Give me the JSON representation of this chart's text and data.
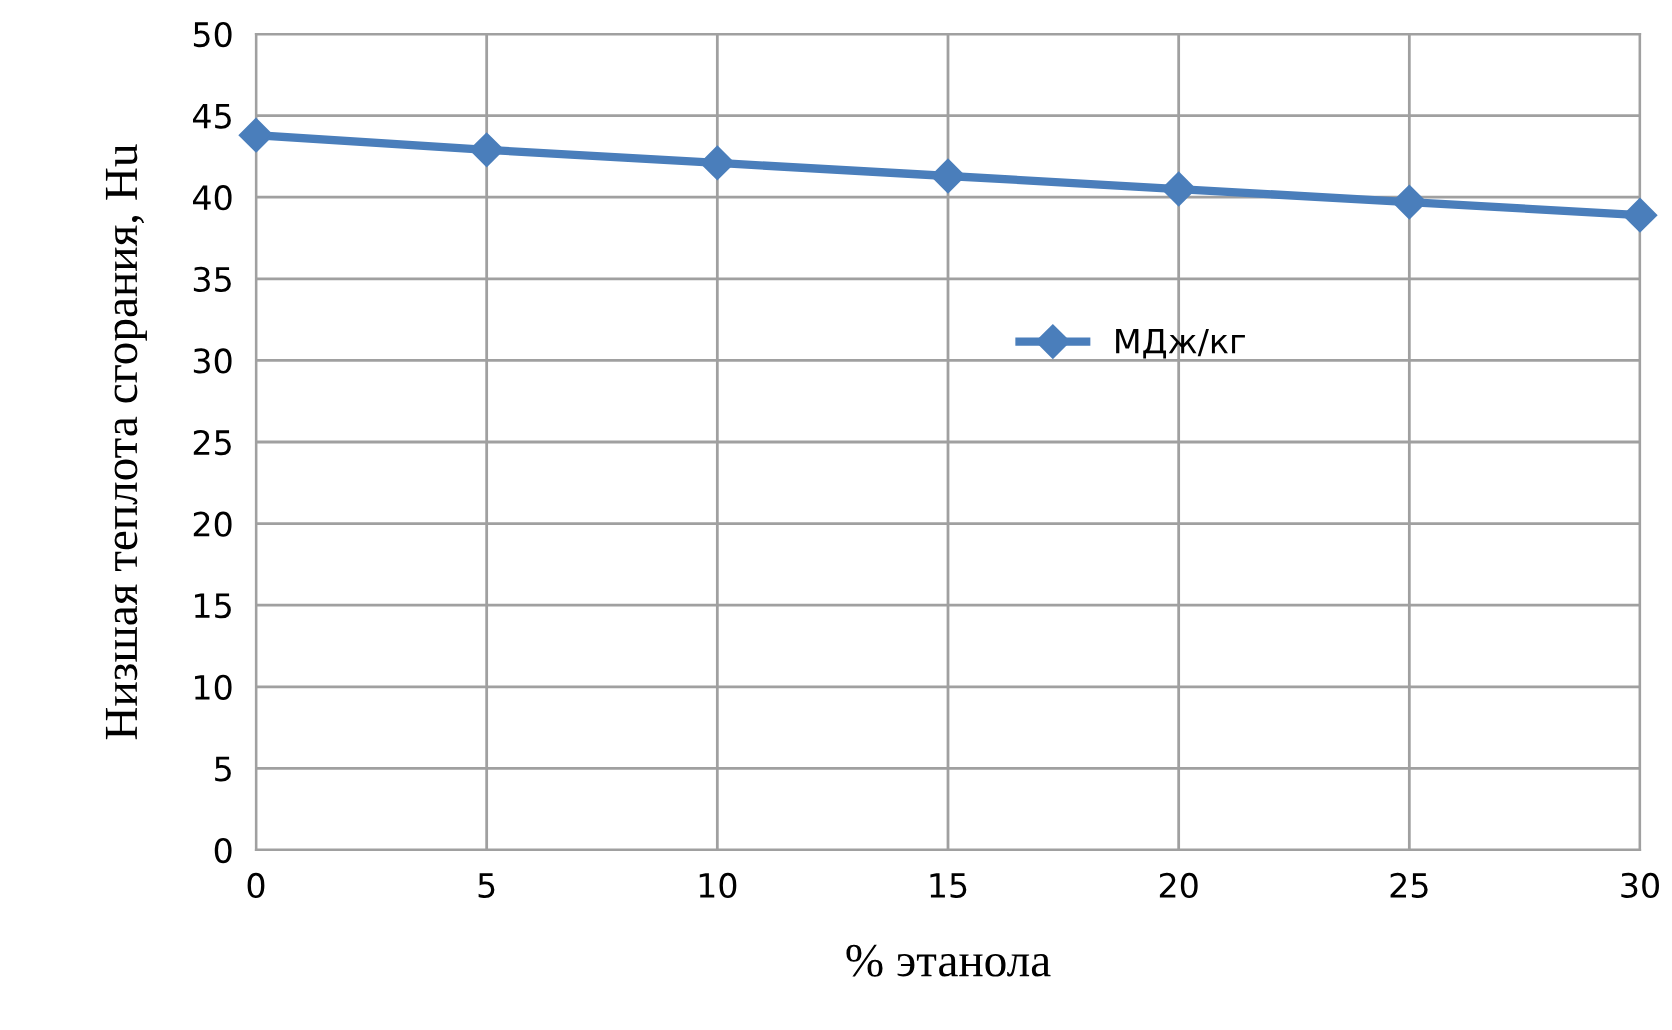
{
  "chart_data": {
    "type": "line",
    "xlabel": "% этанола",
    "ylabel": "Низшая теплота сгорания, Hu",
    "x": [
      0,
      5,
      10,
      15,
      20,
      25,
      30
    ],
    "series": [
      {
        "name": "МДж/кг",
        "color": "#4a7ebb",
        "values": [
          43.8,
          42.9,
          42.1,
          41.3,
          40.5,
          39.7,
          38.9
        ]
      }
    ],
    "xlim": [
      0,
      30
    ],
    "xticks": [
      0,
      5,
      10,
      15,
      20,
      25,
      30
    ],
    "ylim": [
      0,
      50
    ],
    "yticks": [
      0,
      5,
      10,
      15,
      20,
      25,
      30,
      35,
      40,
      45,
      50
    ],
    "grid": true,
    "legend": "right",
    "marker": "diamond",
    "line_style": "solid"
  }
}
